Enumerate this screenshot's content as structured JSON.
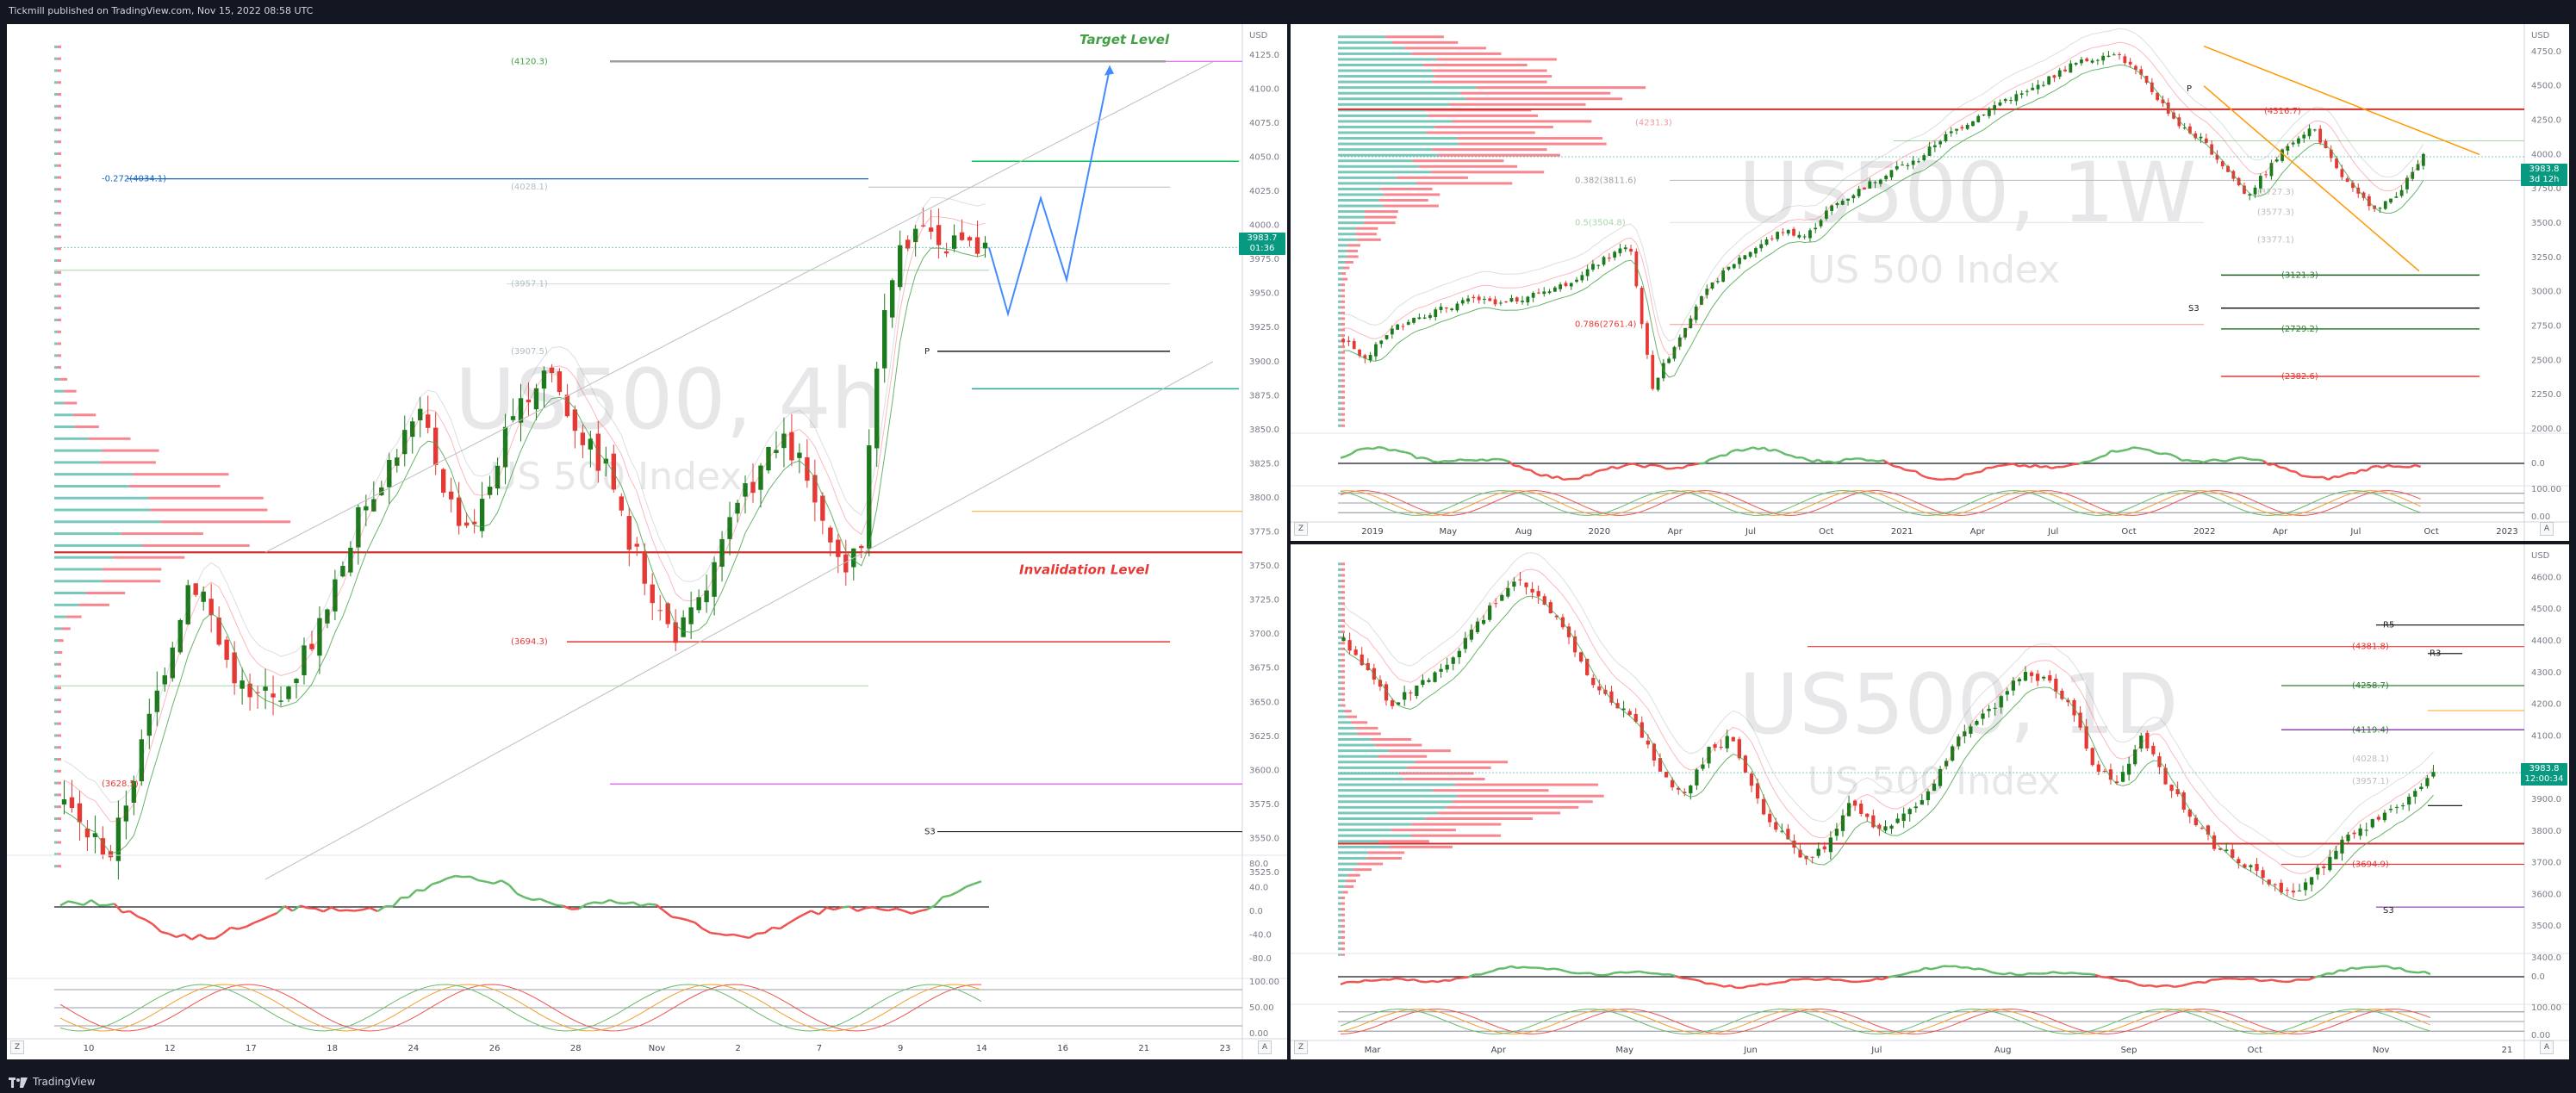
{
  "header": {
    "publisher_line": "Tickmill published on TradingView.com, Nov 15, 2022 08:58 UTC"
  },
  "footer": {
    "brand": "TradingView"
  },
  "colors": {
    "bull": "#089981",
    "bear": "#f23645",
    "accent_red": "#e53935",
    "target_green": "#43a047"
  },
  "panels": {
    "left": {
      "watermark_symbol": "US500, 4h",
      "watermark_name": "US 500 Index",
      "currency": "USD",
      "price_tag": "3983.7",
      "price_tag_sub": "01:36",
      "target_label": "Target Level",
      "invalidation_label": "Invalidation Level",
      "fib_labels": [
        "(4120.3)",
        "-0.272(4034.1)",
        "(4028.1)",
        "(3957.1)",
        "(3907.5)",
        "(3694.3)",
        "(3628.5)"
      ],
      "pivot_labels": [
        "P",
        "S3"
      ],
      "price_axis": [
        "4125.0",
        "4100.0",
        "4075.0",
        "4050.0",
        "4025.0",
        "4000.0",
        "3975.0",
        "3950.0",
        "3925.0",
        "3900.0",
        "3875.0",
        "3850.0",
        "3825.0",
        "3800.0",
        "3775.0",
        "3750.0",
        "3725.0",
        "3700.0",
        "3675.0",
        "3650.0",
        "3625.0",
        "3600.0",
        "3575.0",
        "3550.0",
        "3525.0"
      ],
      "time_axis": [
        "10",
        "12",
        "17",
        "18",
        "24",
        "26",
        "28",
        "Nov",
        "2",
        "7",
        "9",
        "14",
        "16",
        "21",
        "23"
      ],
      "osc1_axis": [
        "80.0",
        "40.0",
        "0.0",
        "-40.0",
        "-80.0"
      ],
      "osc2_axis": [
        "100.00",
        "50.00",
        "0.00"
      ]
    },
    "top_right": {
      "watermark_symbol": "US500, 1W",
      "watermark_name": "US 500 Index",
      "currency": "USD",
      "price_tag": "3983.8",
      "price_tag_sub": "3d 12h",
      "fib_labels": [
        "(4231.3)",
        "(4316.7)",
        "0.382(3811.6)",
        "(3727.3)",
        "(3577.3)",
        "0.5(3504.8)",
        "(3377.1)",
        "(3121.3)",
        "(2729.2)",
        "(2382.6)",
        "0.786(2761.4)"
      ],
      "pivot_labels": [
        "P",
        "S3"
      ],
      "price_axis": [
        "4750.0",
        "4500.0",
        "4250.0",
        "4000.0",
        "3750.0",
        "3500.0",
        "3250.0",
        "3000.0",
        "2750.0",
        "2500.0",
        "2250.0",
        "2000.0"
      ],
      "time_axis": [
        "2019",
        "May",
        "Aug",
        "2020",
        "Apr",
        "Jul",
        "Oct",
        "2021",
        "Apr",
        "Jul",
        "Oct",
        "2022",
        "Apr",
        "Jul",
        "Oct",
        "2023"
      ],
      "osc1_axis": [
        "0.0"
      ],
      "osc2_axis": [
        "100.00",
        "0.00"
      ]
    },
    "bottom_right": {
      "watermark_symbol": "US500, 1D",
      "watermark_name": "US 500 Index",
      "currency": "USD",
      "price_tag": "3983.8",
      "price_tag_sub": "12:00:34",
      "fib_labels": [
        "(4381.8)",
        "(4258.7)",
        "(4119.4)",
        "(4028.1)",
        "(3957.1)",
        "(3694.9)"
      ],
      "pivot_labels": [
        "R5",
        "R3",
        "S3"
      ],
      "price_axis": [
        "4600.0",
        "4500.0",
        "4400.0",
        "4300.0",
        "4200.0",
        "4100.0",
        "4000.0",
        "3900.0",
        "3800.0",
        "3700.0",
        "3600.0",
        "3500.0",
        "3400.0"
      ],
      "time_axis": [
        "Mar",
        "Apr",
        "May",
        "Jun",
        "Jul",
        "Aug",
        "Sep",
        "Oct",
        "Nov",
        "21"
      ],
      "osc1_axis": [
        "0.0"
      ],
      "osc2_axis": [
        "100.00",
        "0.00"
      ]
    }
  },
  "chart_data": [
    {
      "type": "candlestick",
      "title": "US500, 4h",
      "ylim": [
        3525,
        4135
      ],
      "levels": {
        "target": 4120.3,
        "fib_-0.272": 4034.1,
        "invalidation": 3760,
        "fib_3694": 3694.3,
        "pivot_P": 3907.5
      },
      "last_price": 3983.7,
      "close_path": [
        3580,
        3560,
        3550,
        3540,
        3580,
        3620,
        3660,
        3700,
        3740,
        3730,
        3690,
        3670,
        3650,
        3660,
        3640,
        3680,
        3700,
        3720,
        3760,
        3790,
        3810,
        3830,
        3850,
        3860,
        3820,
        3790,
        3780,
        3800,
        3840,
        3860,
        3880,
        3900,
        3870,
        3850,
        3830,
        3820,
        3770,
        3750,
        3720,
        3700,
        3710,
        3730,
        3760,
        3790,
        3810,
        3830,
        3840,
        3830,
        3800,
        3760,
        3750,
        3760,
        3900,
        3960,
        3990,
        4000,
        3980,
        3990,
        3985,
        3983.7
      ],
      "projection": [
        3983.7,
        3935,
        4020,
        3960,
        4115
      ]
    },
    {
      "type": "candlestick",
      "title": "US500, 1W",
      "ylim": [
        2000,
        4875
      ],
      "levels": {
        "fib_4231": 4231.3,
        "fib_0.382": 3811.6,
        "fib_0.5": 3504.8,
        "fib_3121": 3121.3,
        "fib_2729": 2729.2,
        "fib_2382": 2382.6,
        "fib_0.786": 2761.4
      },
      "last_price": 3983.8,
      "close_path": [
        2650,
        2500,
        2700,
        2800,
        2850,
        2900,
        2950,
        2900,
        2950,
        3000,
        3050,
        3150,
        3250,
        3350,
        2300,
        2600,
        2900,
        3100,
        3250,
        3350,
        3450,
        3400,
        3600,
        3700,
        3800,
        3900,
        3950,
        4100,
        4200,
        4300,
        4400,
        4450,
        4550,
        4650,
        4700,
        4750,
        4600,
        4400,
        4200,
        4100,
        3900,
        3700,
        3900,
        4100,
        4200,
        3900,
        3700,
        3600,
        3750,
        3983.8
      ]
    },
    {
      "type": "candlestick",
      "title": "US500, 1D",
      "ylim": [
        3400,
        4650
      ],
      "levels": {
        "fib_4381": 4381.8,
        "fib_4258": 4258.7,
        "fib_4119": 4119.4,
        "fib_4028": 4028.1,
        "fib_3957": 3957.1,
        "invalidation": 3760,
        "fib_3694": 3694.9
      },
      "last_price": 3983.8,
      "close_path": [
        4400,
        4300,
        4200,
        4250,
        4300,
        4400,
        4500,
        4600,
        4550,
        4450,
        4300,
        4200,
        4150,
        4000,
        3900,
        4050,
        4100,
        3900,
        3800,
        3700,
        3750,
        3900,
        3800,
        3850,
        3900,
        4050,
        4150,
        4200,
        4300,
        4280,
        4200,
        4000,
        3950,
        4100,
        3950,
        3850,
        3750,
        3700,
        3650,
        3600,
        3650,
        3750,
        3800,
        3850,
        3900,
        3983.8
      ]
    }
  ]
}
